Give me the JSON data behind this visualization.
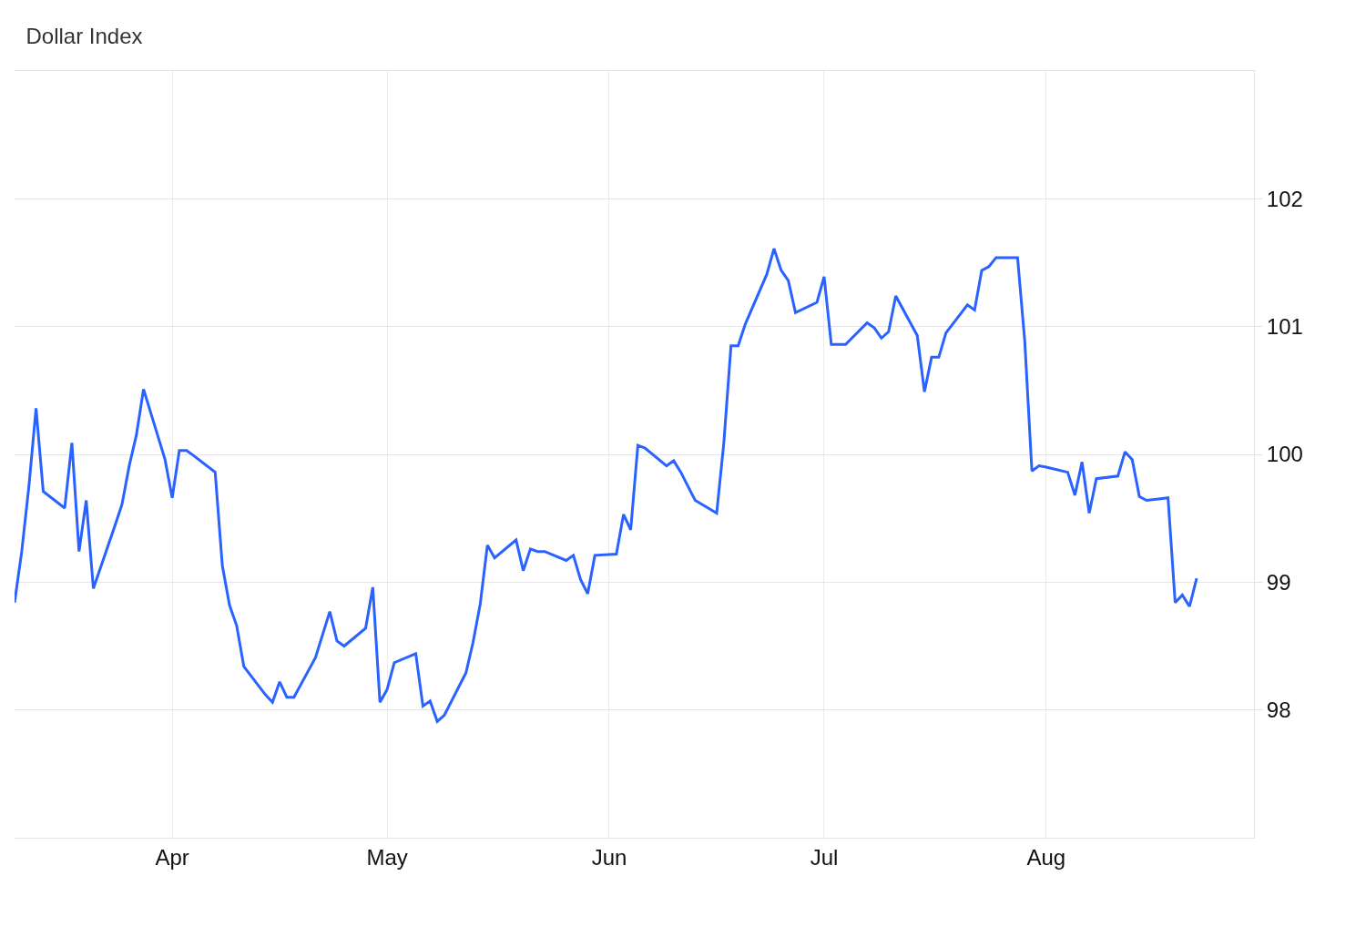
{
  "chart_data": {
    "type": "line",
    "title": "Dollar Index",
    "x": [
      "--03-10",
      "--03-11",
      "--03-12",
      "--03-13",
      "--03-14",
      "--03-17",
      "--03-18",
      "--03-19",
      "--03-20",
      "--03-21",
      "--03-24",
      "--03-25",
      "--03-26",
      "--03-27",
      "--03-28",
      "--03-31",
      "--04-01",
      "--04-02",
      "--04-03",
      "--04-04",
      "--04-07",
      "--04-08",
      "--04-09",
      "--04-10",
      "--04-11",
      "--04-14",
      "--04-15",
      "--04-16",
      "--04-17",
      "--04-18",
      "--04-21",
      "--04-22",
      "--04-23",
      "--04-24",
      "--04-25",
      "--04-28",
      "--04-29",
      "--04-30",
      "--05-01",
      "--05-02",
      "--05-05",
      "--05-06",
      "--05-07",
      "--05-08",
      "--05-09",
      "--05-12",
      "--05-13",
      "--05-14",
      "--05-15",
      "--05-16",
      "--05-19",
      "--05-20",
      "--05-21",
      "--05-22",
      "--05-23",
      "--05-26",
      "--05-27",
      "--05-28",
      "--05-29",
      "--05-30",
      "--06-02",
      "--06-03",
      "--06-04",
      "--06-05",
      "--06-06",
      "--06-09",
      "--06-10",
      "--06-11",
      "--06-12",
      "--06-13",
      "--06-16",
      "--06-17",
      "--06-18",
      "--06-19",
      "--06-20",
      "--06-23",
      "--06-24",
      "--06-25",
      "--06-26",
      "--06-27",
      "--06-30",
      "--07-01",
      "--07-02",
      "--07-03",
      "--07-04",
      "--07-07",
      "--07-08",
      "--07-09",
      "--07-10",
      "--07-11",
      "--07-14",
      "--07-15",
      "--07-16",
      "--07-17",
      "--07-18",
      "--07-21",
      "--07-22",
      "--07-23",
      "--07-24",
      "--07-25",
      "--07-28",
      "--07-29",
      "--07-30",
      "--07-31",
      "--08-01",
      "--08-04",
      "--08-05",
      "--08-06",
      "--08-07",
      "--08-08",
      "--08-11",
      "--08-12",
      "--08-13",
      "--08-14",
      "--08-15",
      "--08-18",
      "--08-19",
      "--08-20",
      "--08-21",
      "--08-22"
    ],
    "series": [
      {
        "color": "#2962ff",
        "values": [
          98.84,
          99.24,
          99.75,
          100.36,
          99.71,
          99.58,
          100.09,
          99.24,
          99.64,
          98.95,
          99.44,
          99.61,
          99.91,
          100.15,
          100.51,
          99.96,
          99.66,
          100.03,
          100.03,
          99.99,
          99.86,
          99.13,
          98.82,
          98.66,
          98.34,
          98.12,
          98.06,
          98.22,
          98.1,
          98.1,
          98.41,
          98.59,
          98.77,
          98.54,
          98.5,
          98.64,
          98.96,
          98.06,
          98.16,
          98.37,
          98.44,
          98.03,
          98.07,
          97.91,
          97.96,
          98.29,
          98.53,
          98.83,
          99.29,
          99.19,
          99.33,
          99.09,
          99.26,
          99.24,
          99.24,
          99.17,
          99.21,
          99.02,
          98.91,
          99.21,
          99.22,
          99.53,
          99.41,
          100.07,
          100.05,
          99.91,
          99.95,
          99.86,
          99.75,
          99.64,
          99.54,
          100.09,
          100.85,
          100.85,
          101.02,
          101.41,
          101.61,
          101.44,
          101.36,
          101.11,
          101.19,
          101.39,
          100.86,
          100.86,
          100.86,
          101.03,
          100.99,
          100.91,
          100.96,
          101.24,
          100.93,
          100.49,
          100.76,
          100.76,
          100.95,
          101.17,
          101.13,
          101.44,
          101.47,
          101.54,
          101.54,
          100.89,
          99.87,
          99.91,
          99.9,
          99.86,
          99.68,
          99.94,
          99.54,
          99.81,
          99.83,
          100.02,
          99.96,
          99.67,
          99.64,
          99.66,
          98.84,
          98.9,
          98.81,
          99.03
        ]
      }
    ],
    "xlim": [
      "--03-10",
      "--08-30"
    ],
    "xticks": [
      {
        "value": "--04-01",
        "label": "Apr"
      },
      {
        "value": "--05-01",
        "label": "May"
      },
      {
        "value": "--06-01",
        "label": "Jun"
      },
      {
        "value": "--07-01",
        "label": "Jul"
      },
      {
        "value": "--08-01",
        "label": "Aug"
      }
    ],
    "ylim": [
      97,
      103
    ],
    "yticks": [
      98,
      99,
      100,
      101,
      102
    ],
    "grid": true,
    "marker": "none",
    "line_style": "solid"
  }
}
